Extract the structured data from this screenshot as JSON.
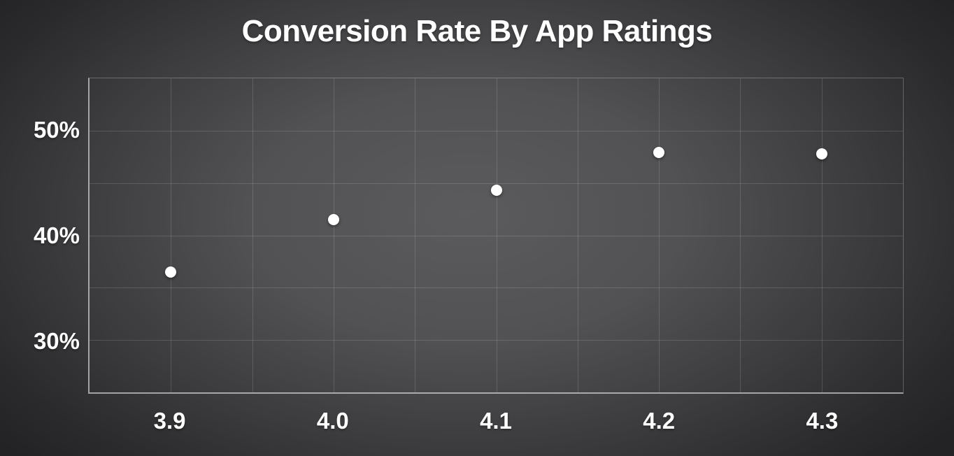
{
  "title": "Conversion Rate By App Ratings",
  "colors": {
    "background_center": "#5b5b5d",
    "background_edge": "#232325",
    "text": "#ffffff",
    "gridline": "#6a6a6c",
    "axis_line": "#b5b5b8",
    "point": "#ffffff"
  },
  "chart_data": {
    "type": "scatter",
    "title": "Conversion Rate By App Ratings",
    "xlabel": "",
    "ylabel": "",
    "x": [
      3.9,
      4.0,
      4.1,
      4.2,
      4.3
    ],
    "y": [
      36.5,
      41.5,
      44.3,
      47.9,
      47.8
    ],
    "xlim": [
      3.85,
      4.35
    ],
    "ylim": [
      25,
      55
    ],
    "x_grid_step": 0.05,
    "y_grid_step": 5,
    "x_ticks": [
      {
        "value": 3.9,
        "label": "3.9"
      },
      {
        "value": 4.0,
        "label": "4.0"
      },
      {
        "value": 4.1,
        "label": "4.1"
      },
      {
        "value": 4.2,
        "label": "4.2"
      },
      {
        "value": 4.3,
        "label": "4.3"
      }
    ],
    "y_ticks": [
      {
        "value": 30,
        "label": "30%"
      },
      {
        "value": 40,
        "label": "40%"
      },
      {
        "value": 50,
        "label": "50%"
      }
    ],
    "grid": true,
    "legend": false,
    "marker": "circle"
  }
}
